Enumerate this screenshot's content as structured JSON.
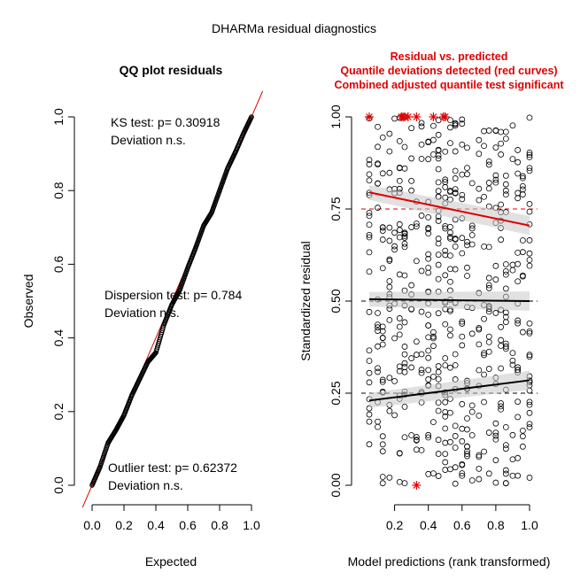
{
  "figure_title": "DHARMa residual diagnostics",
  "colors": {
    "line_red": "#e00000",
    "black": "#000000",
    "band_grey": "#c8c8c8"
  },
  "chart_data": [
    {
      "type": "scatter",
      "title": "QQ plot residuals",
      "xlabel": "Expected",
      "ylabel": "Observed",
      "xlim": [
        0,
        1
      ],
      "ylim": [
        0,
        1
      ],
      "x_ticks": [
        "0.0",
        "0.2",
        "0.4",
        "0.6",
        "0.8",
        "1.0"
      ],
      "y_ticks": [
        "0.0",
        "0.2",
        "0.4",
        "0.6",
        "0.8",
        "1.0"
      ],
      "reference_line": {
        "slope": 1,
        "intercept": 0
      },
      "qq_curve": [
        [
          0,
          0
        ],
        [
          0.05,
          0.05
        ],
        [
          0.1,
          0.115
        ],
        [
          0.15,
          0.15
        ],
        [
          0.2,
          0.19
        ],
        [
          0.25,
          0.245
        ],
        [
          0.3,
          0.29
        ],
        [
          0.35,
          0.335
        ],
        [
          0.4,
          0.36
        ],
        [
          0.45,
          0.435
        ],
        [
          0.5,
          0.49
        ],
        [
          0.55,
          0.53
        ],
        [
          0.6,
          0.59
        ],
        [
          0.65,
          0.645
        ],
        [
          0.7,
          0.705
        ],
        [
          0.75,
          0.74
        ],
        [
          0.8,
          0.8
        ],
        [
          0.85,
          0.86
        ],
        [
          0.9,
          0.905
        ],
        [
          0.95,
          0.955
        ],
        [
          1,
          1
        ]
      ],
      "annotations": [
        {
          "line1": "KS test: p= 0.30918",
          "line2": "Deviation  n.s.",
          "pos": "top-left"
        },
        {
          "line1": "Dispersion test: p= 0.784",
          "line2": "Deviation  n.s.",
          "pos": "middle"
        },
        {
          "line1": "Outlier test: p= 0.62372",
          "line2": "Deviation  n.s.",
          "pos": "bottom-left"
        }
      ]
    },
    {
      "type": "scatter",
      "title_lines": [
        "Residual vs. predicted",
        "Quantile deviations detected (red curves)",
        "Combined adjusted quantile test significant"
      ],
      "xlabel": "Model predictions (rank transformed)",
      "ylabel": "Standardized residual",
      "xlim": [
        0.05,
        1.0
      ],
      "ylim": [
        0,
        1
      ],
      "x_ticks": [
        "0.2",
        "0.4",
        "0.6",
        "0.8",
        "1.0"
      ],
      "y_ticks": [
        "0.00",
        "0.25",
        "0.50",
        "0.75",
        "1.00"
      ],
      "dashed_quantiles": [
        0.25,
        0.5,
        0.75
      ],
      "quantile_curves": [
        {
          "q": 0.75,
          "color": "red",
          "start": [
            0.05,
            0.795
          ],
          "end": [
            1.0,
            0.705
          ]
        },
        {
          "q": 0.5,
          "color": "black",
          "start": [
            0.05,
            0.505
          ],
          "end": [
            1.0,
            0.5
          ]
        },
        {
          "q": 0.25,
          "color": "black",
          "start": [
            0.05,
            0.23
          ],
          "end": [
            1.0,
            0.285
          ]
        }
      ],
      "x_columns": [
        0.05,
        0.1,
        0.13,
        0.17,
        0.2,
        0.23,
        0.26,
        0.3,
        0.33,
        0.36,
        0.4,
        0.43,
        0.46,
        0.5,
        0.53,
        0.56,
        0.6,
        0.63,
        0.66,
        0.7,
        0.73,
        0.76,
        0.8,
        0.83,
        0.86,
        0.9,
        0.93,
        0.96,
        1.0
      ],
      "outliers": [
        [
          0.05,
          1.0
        ],
        [
          0.24,
          1.0
        ],
        [
          0.25,
          1.0
        ],
        [
          0.26,
          1.0
        ],
        [
          0.28,
          1.0
        ],
        [
          0.33,
          1.0
        ],
        [
          0.43,
          1.0
        ],
        [
          0.49,
          1.0
        ],
        [
          0.5,
          1.0
        ],
        [
          0.33,
          0.0
        ]
      ]
    }
  ]
}
